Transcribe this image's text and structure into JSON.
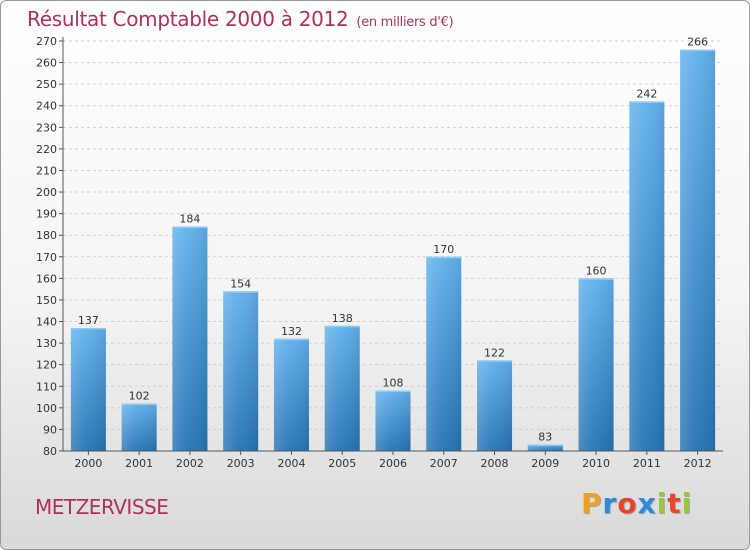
{
  "header": {
    "title": "Résultat Comptable 2000 à 2012",
    "subtitle": "(en milliers d'€)"
  },
  "footer": {
    "commune": "METZERVISSE",
    "logo_letters": [
      "P",
      "r",
      "o",
      "x",
      "i",
      "t",
      "i"
    ],
    "logo_colors": [
      "#f0a020",
      "#2e8bd8",
      "#e8452c",
      "#2e8bd8",
      "#9bc63c",
      "#e8452c",
      "#9bc63c"
    ]
  },
  "colors": {
    "title": "#b0305c",
    "bar_top": "#62b1ec",
    "bar_bottom": "#2574b4",
    "grid": "#cfcfcf",
    "axis": "#555555"
  },
  "chart_data": {
    "type": "bar",
    "title": "Résultat Comptable 2000 à 2012",
    "subtitle": "(en milliers d'€)",
    "categories": [
      "2000",
      "2001",
      "2002",
      "2003",
      "2004",
      "2005",
      "2006",
      "2007",
      "2008",
      "2009",
      "2010",
      "2011",
      "2012"
    ],
    "values": [
      137,
      102,
      184,
      154,
      132,
      138,
      108,
      170,
      122,
      83,
      160,
      242,
      266
    ],
    "ylim": [
      80,
      270
    ],
    "ytick_step": 10,
    "grid": true,
    "legend": "none"
  }
}
